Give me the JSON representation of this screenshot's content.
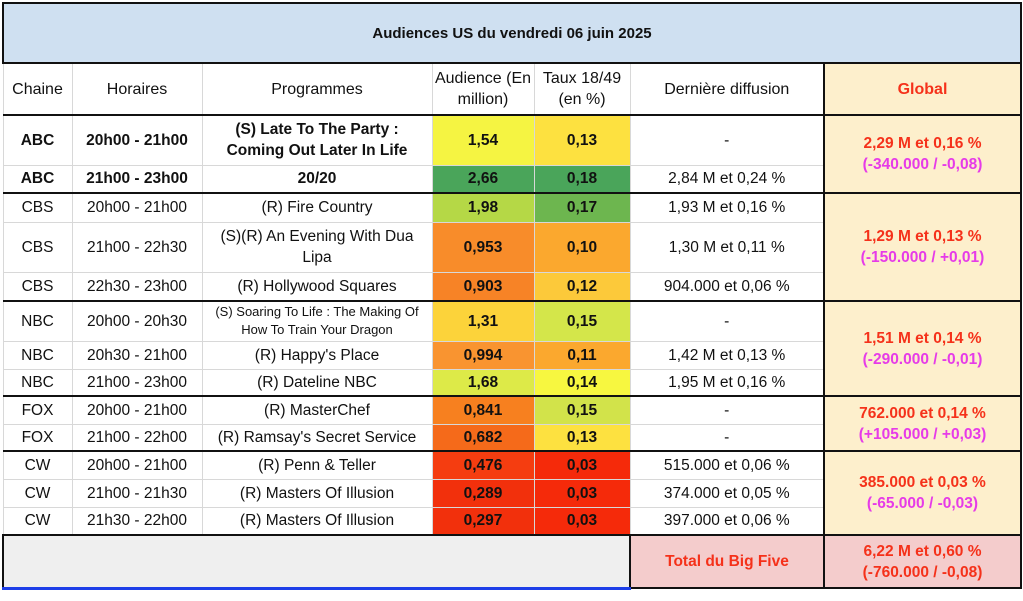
{
  "title": "Audiences US du vendredi 06 juin 2025",
  "headers": {
    "chaine": "Chaine",
    "horaires": "Horaires",
    "programmes": "Programmes",
    "audience": "Audience (En million)",
    "taux": "Taux 18/49 (en %)",
    "derniere": "Dernière diffusion",
    "global": "Global"
  },
  "groups": [
    {
      "global_main": "2,29 M et 0,16 %",
      "global_diff": "(-340.000 / -0,08)",
      "rows": [
        {
          "chaine": "ABC",
          "horaires": "20h00 - 21h00",
          "programme": "(S) Late To The Party : Coming Out Later In Life",
          "audience": "1,54",
          "audience_color": "#f5f442",
          "taux": "0,13",
          "taux_color": "#fde140",
          "derniere": "-",
          "bold": true
        },
        {
          "chaine": "ABC",
          "horaires": "21h00 - 23h00",
          "programme": "20/20",
          "audience": "2,66",
          "audience_color": "#4aa55a",
          "taux": "0,18",
          "taux_color": "#4aa55a",
          "derniere": "2,84 M et 0,24 %",
          "bold": true
        }
      ]
    },
    {
      "global_main": "1,29 M et 0,13 %",
      "global_diff": "(-150.000 / +0,01)",
      "rows": [
        {
          "chaine": "CBS",
          "horaires": "20h00 - 21h00",
          "programme": "(R) Fire Country",
          "audience": "1,98",
          "audience_color": "#b5d846",
          "taux": "0,17",
          "taux_color": "#6db64f",
          "derniere": "1,93 M et 0,16 %"
        },
        {
          "chaine": "CBS",
          "horaires": "21h00 - 22h30",
          "programme": "(S)(R) An Evening With Dua Lipa",
          "audience": "0,953",
          "audience_color": "#f88c2a",
          "taux": "0,10",
          "taux_color": "#fba82e",
          "derniere": "1,30 M et 0,11 %"
        },
        {
          "chaine": "CBS",
          "horaires": "22h30 - 23h00",
          "programme": "(R) Hollywood Squares",
          "audience": "0,903",
          "audience_color": "#f78326",
          "taux": "0,12",
          "taux_color": "#fcc93a",
          "derniere": "904.000 et 0,06 %"
        }
      ]
    },
    {
      "global_main": "1,51 M et 0,14 %",
      "global_diff": "(-290.000 / -0,01)",
      "rows": [
        {
          "chaine": "NBC",
          "horaires": "20h00 - 20h30",
          "programme": "(S) Soaring To Life : The Making Of How To Train Your Dragon",
          "audience": "1,31",
          "audience_color": "#fcd33a",
          "taux": "0,15",
          "taux_color": "#d4e64a",
          "derniere": "-",
          "small": true
        },
        {
          "chaine": "NBC",
          "horaires": "20h30 - 21h00",
          "programme": "(R) Happy's Place",
          "audience": "0,994",
          "audience_color": "#f99430",
          "taux": "0,11",
          "taux_color": "#fba82e",
          "derniere": "1,42 M et 0,13 %"
        },
        {
          "chaine": "NBC",
          "horaires": "21h00 - 23h00",
          "programme": "(R) Dateline NBC",
          "audience": "1,68",
          "audience_color": "#ddea48",
          "taux": "0,14",
          "taux_color": "#f7f740",
          "derniere": "1,95 M et 0,16 %"
        }
      ]
    },
    {
      "global_main": "762.000 et 0,14 %",
      "global_diff": "(+105.000 / +0,03)",
      "rows": [
        {
          "chaine": "FOX",
          "horaires": "20h00 - 21h00",
          "programme": "(R) MasterChef",
          "audience": "0,841",
          "audience_color": "#f7801f",
          "taux": "0,15",
          "taux_color": "#d2e34a",
          "derniere": "-"
        },
        {
          "chaine": "FOX",
          "horaires": "21h00 - 22h00",
          "programme": "(R) Ramsay's Secret Service",
          "audience": "0,682",
          "audience_color": "#f56a1a",
          "taux": "0,13",
          "taux_color": "#fde140",
          "derniere": "-"
        }
      ]
    },
    {
      "global_main": "385.000 et 0,03 %",
      "global_diff": "(-65.000 / -0,03)",
      "rows": [
        {
          "chaine": "CW",
          "horaires": "20h00 - 21h00",
          "programme": "(R) Penn & Teller",
          "audience": "0,476",
          "audience_color": "#f53d10",
          "taux": "0,03",
          "taux_color": "#f52a0a",
          "derniere": "515.000 et 0,06 %"
        },
        {
          "chaine": "CW",
          "horaires": "21h00 - 21h30",
          "programme": "(R) Masters Of Illusion",
          "audience": "0,289",
          "audience_color": "#f2300c",
          "taux": "0,03",
          "taux_color": "#f52a0a",
          "derniere": "374.000 et 0,05 %"
        },
        {
          "chaine": "CW",
          "horaires": "21h30 - 22h00",
          "programme": "(R) Masters Of Illusion",
          "audience": "0,297",
          "audience_color": "#f2300c",
          "taux": "0,03",
          "taux_color": "#f52a0a",
          "derniere": "397.000 et 0,06 %"
        }
      ]
    }
  ],
  "footer": {
    "label": "Total du Big Five",
    "total_main": "6,22 M et 0,60 %",
    "total_diff": "(-760.000 / -0,08)"
  }
}
